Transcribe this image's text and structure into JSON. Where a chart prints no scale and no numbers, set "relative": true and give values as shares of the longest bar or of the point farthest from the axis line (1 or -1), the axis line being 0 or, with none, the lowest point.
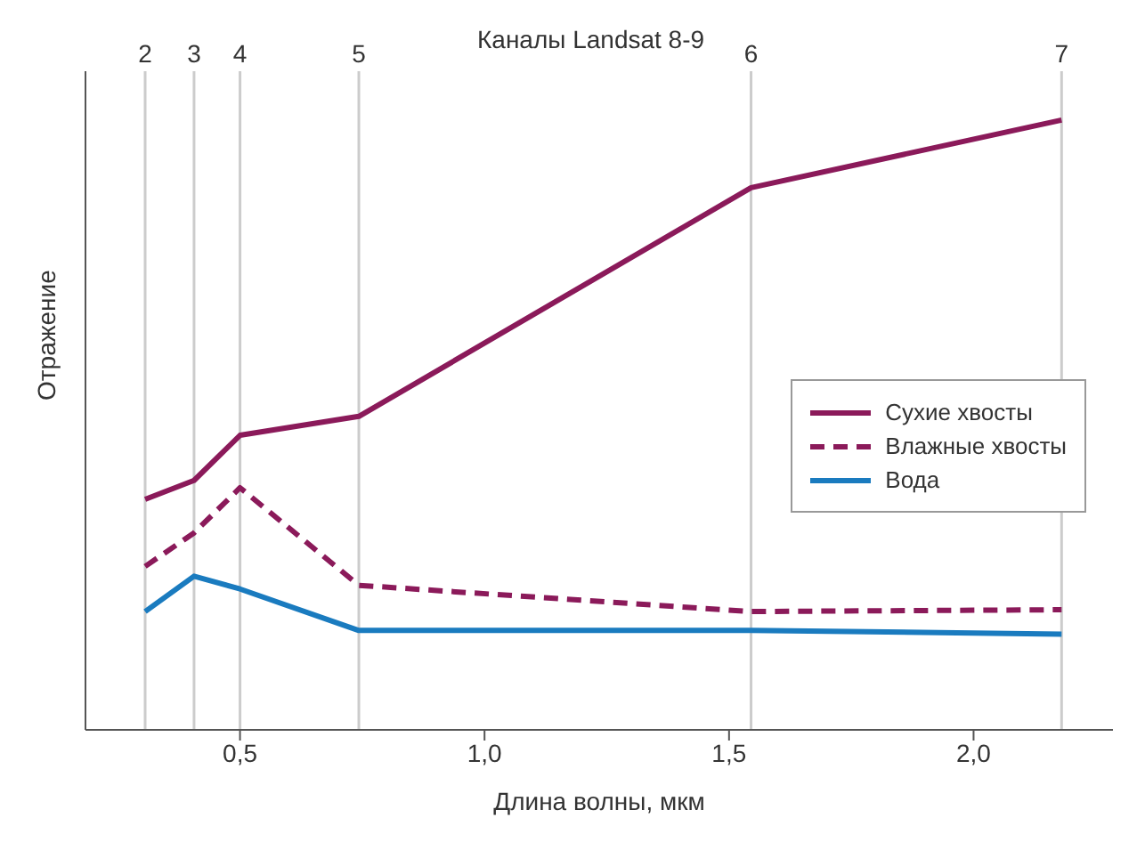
{
  "chart_data": {
    "type": "line",
    "relative": true,
    "xlabel": "Длина волны, мкм",
    "ylabel": "Отражение",
    "annotations": [
      "Каналы Landsat 8-9",
      "2",
      "3",
      "4",
      "5",
      "6",
      "7"
    ],
    "x": [
      0.306,
      0.406,
      0.5,
      0.743,
      1.545,
      2.18
    ],
    "xlim": [
      0.184,
      2.285
    ],
    "xticks": [
      {
        "value": 0.5,
        "label": "0,5"
      },
      {
        "value": 1.0,
        "label": "1,0"
      },
      {
        "value": 1.5,
        "label": "1,5"
      },
      {
        "value": 2.0,
        "label": "2,0"
      }
    ],
    "ref_lines": [
      {
        "axis": "x",
        "value": 0.306,
        "color": "#cccccc"
      },
      {
        "axis": "x",
        "value": 0.406,
        "color": "#cccccc"
      },
      {
        "axis": "x",
        "value": 0.5,
        "color": "#cccccc"
      },
      {
        "axis": "x",
        "value": 0.743,
        "color": "#cccccc"
      },
      {
        "axis": "x",
        "value": 1.545,
        "color": "#cccccc"
      },
      {
        "axis": "x",
        "value": 2.18,
        "color": "#cccccc"
      }
    ],
    "series": [
      {
        "name": "Сухие хвосты",
        "color": "#8b1a5a",
        "line_style": "solid",
        "values": [
          0.378,
          0.409,
          0.483,
          0.514,
          0.889,
          1
        ]
      },
      {
        "name": "Влажные хвосты",
        "color": "#8b1a5a",
        "line_style": "dashed",
        "values": [
          0.268,
          0.323,
          0.397,
          0.237,
          0.194,
          0.197
        ]
      },
      {
        "name": "Вода",
        "color": "#1a7bbf",
        "line_style": "solid",
        "values": [
          0.194,
          0.252,
          0.231,
          0.163,
          0.163,
          0.157
        ]
      }
    ],
    "legend": "right",
    "marker": "none"
  }
}
